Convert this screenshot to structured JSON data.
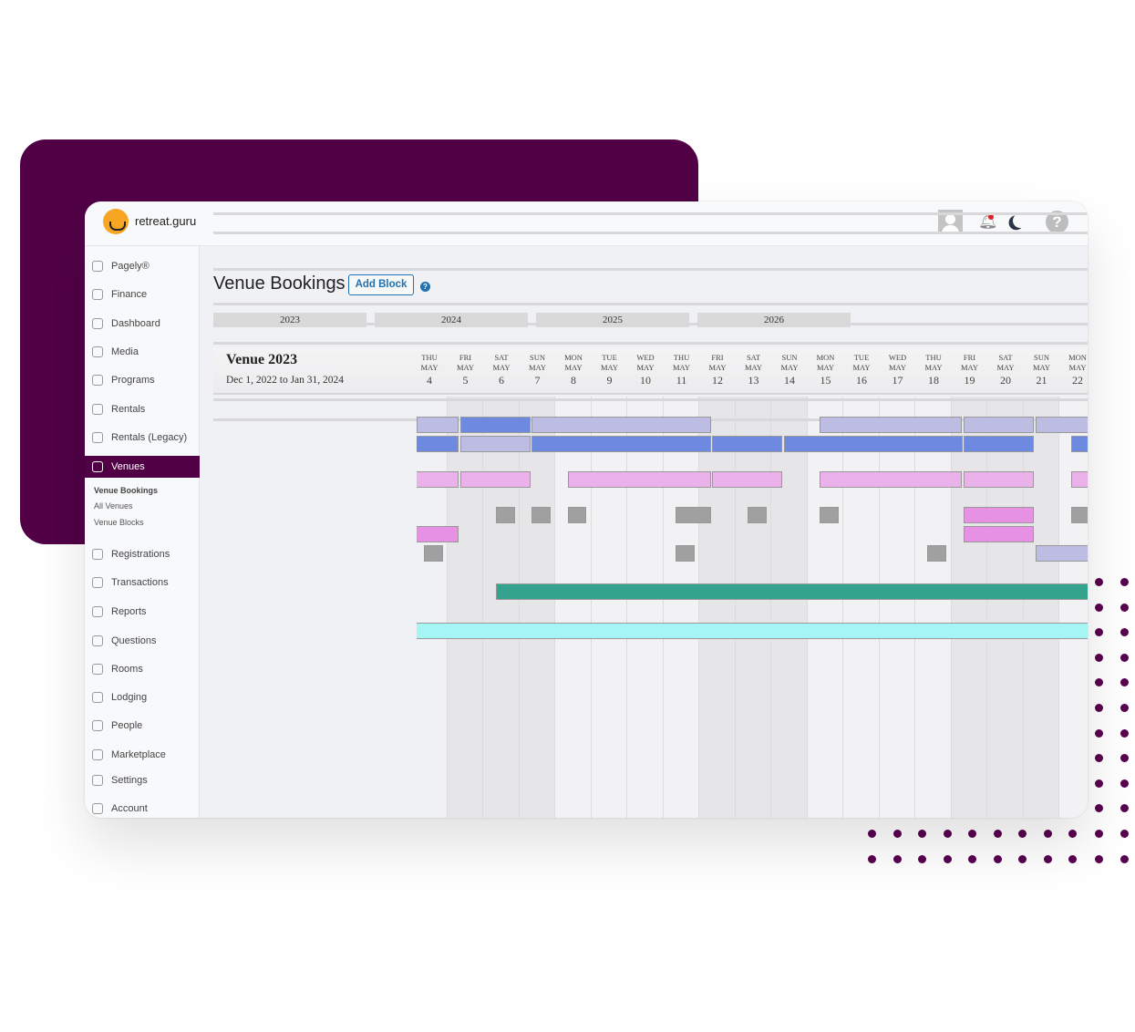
{
  "app": {
    "brand": "retreat.guru",
    "colors": {
      "brand_purple": "#510046",
      "accent": "#2271b1"
    }
  },
  "header": {
    "icons": [
      "avatar",
      "bell-icon",
      "moon-icon",
      "help-icon"
    ],
    "help_glyph": "?"
  },
  "sidebar": {
    "items": [
      {
        "label": "Pagely®",
        "icon": "pagely-icon"
      },
      {
        "label": "Finance",
        "icon": "dollar-icon"
      },
      {
        "label": "Dashboard",
        "icon": "home-icon"
      },
      {
        "label": "Media",
        "icon": "media-icon"
      },
      {
        "label": "Programs",
        "icon": "calendar-icon"
      },
      {
        "label": "Rentals",
        "icon": "calendar-icon"
      },
      {
        "label": "Rentals (Legacy)",
        "icon": "calendar-icon"
      },
      {
        "label": "Venues",
        "icon": "building-icon",
        "active": true
      },
      {
        "label": "Registrations",
        "icon": "users-icon"
      },
      {
        "label": "Transactions",
        "icon": "dollar-icon"
      },
      {
        "label": "Reports",
        "icon": "chart-icon"
      },
      {
        "label": "Questions",
        "icon": "comment-icon"
      },
      {
        "label": "Rooms",
        "icon": "clipboard-icon"
      },
      {
        "label": "Lodging",
        "icon": "clipboard-icon"
      },
      {
        "label": "People",
        "icon": "people-icon"
      },
      {
        "label": "Marketplace",
        "icon": "comment-icon"
      },
      {
        "label": "Settings",
        "icon": "sliders-icon"
      },
      {
        "label": "Account",
        "icon": "user-circle-icon"
      }
    ],
    "submenu": [
      "Venue Bookings",
      "All Venues",
      "Venue Blocks"
    ]
  },
  "main": {
    "title": "Venue Bookings",
    "add_block": "Add Block",
    "help": "?",
    "years": [
      "2023",
      "2024",
      "2025",
      "2026"
    ],
    "venue": {
      "name": "Venue 2023",
      "dates": "Dec 1, 2022 to Jan 31, 2024"
    },
    "days": [
      {
        "dow": "THU",
        "mon": "MAY",
        "d": "4"
      },
      {
        "dow": "FRI",
        "mon": "MAY",
        "d": "5"
      },
      {
        "dow": "SAT",
        "mon": "MAY",
        "d": "6"
      },
      {
        "dow": "SUN",
        "mon": "MAY",
        "d": "7"
      },
      {
        "dow": "MON",
        "mon": "MAY",
        "d": "8"
      },
      {
        "dow": "TUE",
        "mon": "MAY",
        "d": "9"
      },
      {
        "dow": "WED",
        "mon": "MAY",
        "d": "10"
      },
      {
        "dow": "THU",
        "mon": "MAY",
        "d": "11"
      },
      {
        "dow": "FRI",
        "mon": "MAY",
        "d": "12"
      },
      {
        "dow": "SAT",
        "mon": "MAY",
        "d": "13"
      },
      {
        "dow": "SUN",
        "mon": "MAY",
        "d": "14"
      },
      {
        "dow": "MON",
        "mon": "MAY",
        "d": "15"
      },
      {
        "dow": "TUE",
        "mon": "MAY",
        "d": "16"
      },
      {
        "dow": "WED",
        "mon": "MAY",
        "d": "17"
      },
      {
        "dow": "THU",
        "mon": "MAY",
        "d": "18"
      },
      {
        "dow": "FRI",
        "mon": "MAY",
        "d": "19"
      },
      {
        "dow": "SAT",
        "mon": "MAY",
        "d": "20"
      },
      {
        "dow": "SUN",
        "mon": "MAY",
        "d": "21"
      },
      {
        "dow": "MON",
        "mon": "MAY",
        "d": "22"
      }
    ],
    "shaded_days": [
      5,
      6,
      7,
      12,
      13,
      14,
      19,
      20,
      21
    ],
    "booking_colors": {
      "lavender": "#bdbde3",
      "blue": "#6e8ae0",
      "pink": "#ebb1ea",
      "magenta": "#e691e3",
      "gray": "#a0a0a0",
      "teal": "#33a38e",
      "cyan": "#a6f5f5"
    },
    "rows": [
      [
        [
          "lavender",
          4.15,
          5.32
        ],
        [
          "blue",
          5.37,
          7.32
        ],
        [
          "lavender",
          7.34,
          12.33
        ],
        [
          "lavender",
          15.34,
          19.29
        ],
        [
          "lavender",
          19.34,
          21.29
        ],
        [
          "lavender",
          21.34,
          23.5
        ]
      ],
      [
        [
          "blue",
          4.0,
          5.32
        ],
        [
          "lavender",
          5.37,
          7.32
        ],
        [
          "blue",
          7.34,
          12.33
        ],
        [
          "blue",
          12.35,
          14.3
        ],
        [
          "blue",
          14.35,
          19.32
        ],
        [
          "blue",
          19.34,
          21.29
        ],
        [
          "blue",
          22.33,
          23.5
        ]
      ],
      [],
      [
        [
          "pink",
          4.0,
          5.32
        ],
        [
          "pink",
          5.37,
          7.32
        ],
        [
          "pink",
          8.35,
          12.33
        ],
        [
          "pink",
          12.35,
          14.3
        ],
        [
          "pink",
          15.34,
          19.29
        ],
        [
          "pink",
          19.34,
          21.29
        ],
        [
          "pink",
          22.33,
          23.5
        ]
      ],
      [],
      [
        [
          "gray",
          6.35,
          6.89
        ],
        [
          "gray",
          7.34,
          7.87
        ],
        [
          "gray",
          8.35,
          8.86
        ],
        [
          "gray",
          11.34,
          12.33
        ],
        [
          "gray",
          13.34,
          13.87
        ],
        [
          "gray",
          15.34,
          15.87
        ],
        [
          "magenta",
          19.34,
          21.29
        ],
        [
          "gray",
          22.33,
          23.5
        ]
      ],
      [
        [
          "magenta",
          4.0,
          5.32
        ],
        [
          "magenta",
          19.34,
          21.29
        ]
      ],
      [
        [
          "gray",
          4.35,
          4.89
        ],
        [
          "gray",
          11.34,
          11.87
        ],
        [
          "gray",
          18.33,
          18.86
        ],
        [
          "lavender",
          21.34,
          23.5
        ]
      ],
      [],
      [
        [
          "teal",
          6.35,
          23.5
        ]
      ],
      [],
      [
        [
          "cyan",
          4.0,
          23.5
        ]
      ]
    ]
  }
}
